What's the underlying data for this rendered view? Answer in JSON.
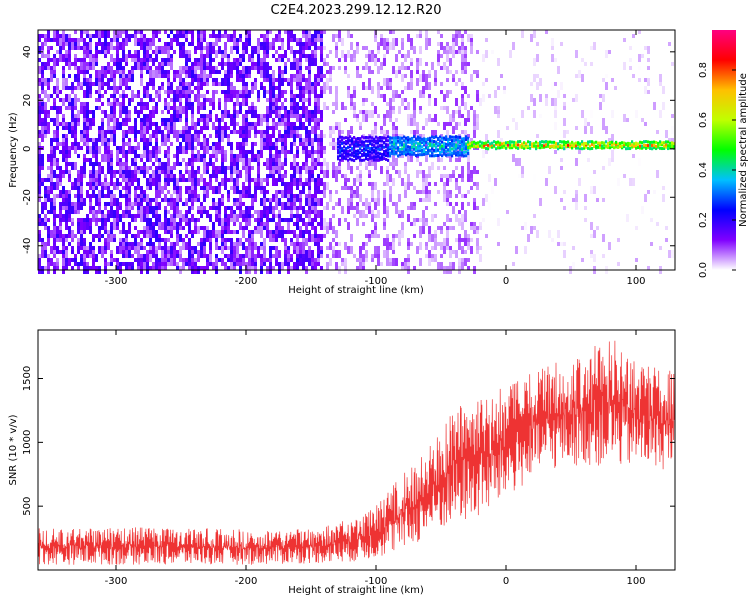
{
  "title": "C2E4.2023.299.12.12.R20",
  "chart_data": [
    {
      "type": "heatmap",
      "xlabel": "Height of straight line (km)",
      "ylabel": "Frequency (Hz)",
      "xlim": [
        -360,
        130
      ],
      "ylim": [
        -50,
        49
      ],
      "xticks": [
        -300,
        -200,
        -100,
        0,
        100
      ],
      "yticks": [
        -40,
        -20,
        0,
        20,
        40
      ],
      "colorbar": {
        "label": "Normalized spectral amplitude",
        "range": [
          0.0,
          0.96
        ],
        "ticks": [
          0.0,
          0.2,
          0.4,
          0.6,
          0.8
        ],
        "colormap": [
          "#ffffff",
          "#8000ff",
          "#0000ff",
          "#00c0ff",
          "#00ff00",
          "#c0ff00",
          "#ffc000",
          "#ff0000",
          "#ff0080"
        ]
      },
      "regions": [
        {
          "x": [
            -360,
            -140
          ],
          "freq_range": [
            -50,
            49
          ],
          "amplitude": [
            0.05,
            0.2
          ],
          "density": "high"
        },
        {
          "x": [
            -140,
            -20
          ],
          "freq_range": [
            -50,
            49
          ],
          "amplitude": [
            0.02,
            0.1
          ],
          "density": "medium"
        },
        {
          "x": [
            -20,
            130
          ],
          "freq_range": [
            -50,
            49
          ],
          "amplitude": [
            0.0,
            0.05
          ],
          "density": "sparse"
        }
      ],
      "signal_band": [
        {
          "x": [
            -130,
            -90
          ],
          "center_freq": 0,
          "half_width": 5,
          "amplitude": [
            0.15,
            0.3
          ]
        },
        {
          "x": [
            -90,
            -30
          ],
          "center_freq": 1,
          "half_width": 4,
          "amplitude": [
            0.25,
            0.45
          ]
        },
        {
          "x": [
            -30,
            130
          ],
          "center_freq": 1.5,
          "half_width": 1.5,
          "amplitude": [
            0.4,
            0.9
          ]
        }
      ]
    },
    {
      "type": "line",
      "xlabel": "Height of straight line (km)",
      "ylabel": "SNR (10 * v/v)",
      "xlim": [
        -360,
        130
      ],
      "ylim": [
        0,
        1880
      ],
      "xticks": [
        -300,
        -200,
        -100,
        0,
        100
      ],
      "yticks": [
        500,
        1000,
        1500
      ],
      "series_color": "#ee3333",
      "envelope": [
        {
          "x": -360,
          "low": 40,
          "high": 330
        },
        {
          "x": -300,
          "low": 40,
          "high": 340
        },
        {
          "x": -200,
          "low": 40,
          "high": 320
        },
        {
          "x": -150,
          "low": 50,
          "high": 320
        },
        {
          "x": -120,
          "low": 60,
          "high": 400
        },
        {
          "x": -100,
          "low": 90,
          "high": 500
        },
        {
          "x": -80,
          "low": 150,
          "high": 750
        },
        {
          "x": -60,
          "low": 250,
          "high": 950
        },
        {
          "x": -40,
          "low": 350,
          "high": 1300
        },
        {
          "x": -20,
          "low": 400,
          "high": 1350
        },
        {
          "x": 0,
          "low": 550,
          "high": 1450
        },
        {
          "x": 20,
          "low": 700,
          "high": 1550
        },
        {
          "x": 40,
          "low": 800,
          "high": 1650
        },
        {
          "x": 60,
          "low": 820,
          "high": 1700
        },
        {
          "x": 80,
          "low": 800,
          "high": 1880
        },
        {
          "x": 100,
          "low": 800,
          "high": 1650
        },
        {
          "x": 130,
          "low": 780,
          "high": 1550
        }
      ]
    }
  ]
}
